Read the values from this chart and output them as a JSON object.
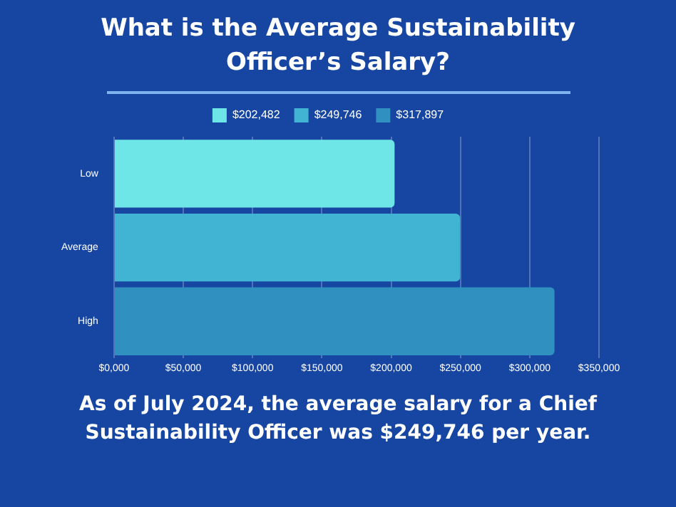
{
  "chart_data": {
    "type": "bar",
    "orientation": "horizontal",
    "stacked": true,
    "title": "What is the Average Sustainability Officer’s Salary?",
    "categories": [
      "Low",
      "Average",
      "High"
    ],
    "series": [
      {
        "name": "$202,482",
        "color": "#6ee6e8",
        "values": [
          202482,
          null,
          null
        ]
      },
      {
        "name": "$249,746",
        "color": "#41b3d3",
        "values": [
          null,
          249746,
          null
        ]
      },
      {
        "name": "$317,897",
        "color": "#3090c0",
        "values": [
          null,
          null,
          317897
        ]
      }
    ],
    "xlim": [
      0,
      350000
    ],
    "xticks": [
      {
        "value": 0,
        "label": "$0,000"
      },
      {
        "value": 50000,
        "label": "$50,000"
      },
      {
        "value": 100000,
        "label": "$100,000"
      },
      {
        "value": 150000,
        "label": "$150,000"
      },
      {
        "value": 200000,
        "label": "$200,000"
      },
      {
        "value": 250000,
        "label": "$250,000"
      },
      {
        "value": 300000,
        "label": "$300,000"
      },
      {
        "value": 350000,
        "label": "$350,000"
      }
    ],
    "grid": "x",
    "legend": "top",
    "annotations": [
      "As of July 2024, the average salary for a Chief Sustainability Officer was $249,746 per year."
    ]
  }
}
